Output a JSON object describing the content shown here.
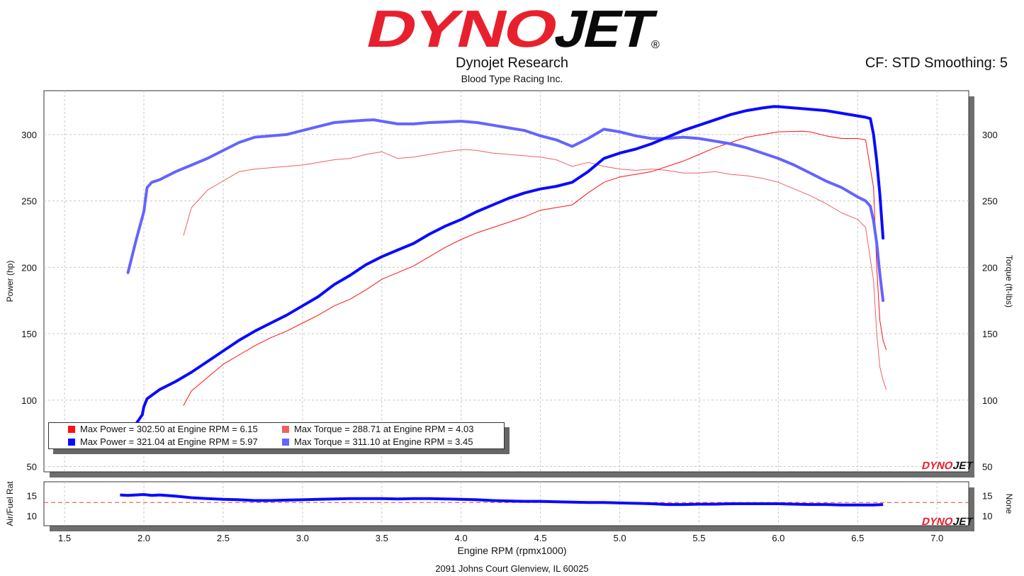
{
  "header": {
    "logo_text": "DYNOJET",
    "registered_mark": "®",
    "company": "Dynojet Research",
    "shop": "Blood Type Racing Inc.",
    "settings": "CF: STD Smoothing: 5"
  },
  "footer": {
    "address": "2091 Johns Court Glenview, IL 60025"
  },
  "watermark": "DYNOJET",
  "colors": {
    "run1_power": "#ff1010",
    "run1_torque": "#f06060",
    "run2_power": "#0a0aff",
    "run2_torque": "#6464ff",
    "afr_target": "#e04040",
    "logo_red": "#e8202e",
    "logo_black": "#0a0a0a"
  },
  "legend": [
    {
      "text": "Max Power = 302.50 at Engine RPM = 6.15",
      "color": "#ff1010"
    },
    {
      "text": "Max Torque = 288.71 at Engine RPM = 4.03",
      "color": "#f06060"
    },
    {
      "text": "Max Power = 321.04 at Engine RPM = 5.97",
      "color": "#0a0aff"
    },
    {
      "text": "Max Torque = 311.10 at Engine RPM = 3.45",
      "color": "#6464ff"
    }
  ],
  "chart_data": [
    {
      "type": "line",
      "xlabel": "Engine RPM (rpmx1000)",
      "ylabel": "Power (hp)",
      "y2label": "Torque (ft-lbs)",
      "xlim": [
        1.37,
        7.2
      ],
      "ylim": [
        46,
        333
      ],
      "xticks": [
        "1.5",
        "2.0",
        "2.5",
        "3.0",
        "3.5",
        "4.0",
        "4.5",
        "5.0",
        "5.5",
        "6.0",
        "6.5",
        "7.0"
      ],
      "yticks": [
        "50",
        "100",
        "150",
        "200",
        "250",
        "300"
      ],
      "y2ticks": [
        "50",
        "100",
        "150",
        "200",
        "250",
        "300"
      ],
      "grid": true,
      "legend_position": "bottom-left",
      "series": [
        {
          "axis": "power",
          "color": "#ff1010",
          "x": [
            2.25,
            2.3,
            2.4,
            2.5,
            2.6,
            2.7,
            2.8,
            2.9,
            3.0,
            3.1,
            3.2,
            3.3,
            3.4,
            3.5,
            3.6,
            3.7,
            3.8,
            3.9,
            4.0,
            4.1,
            4.2,
            4.3,
            4.4,
            4.5,
            4.6,
            4.7,
            4.8,
            4.9,
            5.0,
            5.1,
            5.2,
            5.3,
            5.4,
            5.5,
            5.6,
            5.7,
            5.8,
            5.9,
            6.0,
            6.1,
            6.15,
            6.2,
            6.3,
            6.4,
            6.5,
            6.55,
            6.6,
            6.62,
            6.64,
            6.66,
            6.68
          ],
          "y": [
            96,
            107,
            117,
            127,
            134,
            141,
            147,
            152,
            158,
            164,
            171,
            176,
            183,
            191,
            196,
            201,
            208,
            215,
            221,
            226,
            230,
            234,
            238,
            243,
            245,
            247,
            256,
            264,
            268,
            270,
            272,
            276,
            280,
            285,
            290,
            294,
            298,
            300,
            302,
            302.3,
            302.5,
            302,
            299,
            297,
            297,
            296,
            260,
            200,
            160,
            145,
            138
          ]
        },
        {
          "axis": "torque",
          "color": "#f06060",
          "x": [
            2.25,
            2.3,
            2.4,
            2.5,
            2.6,
            2.7,
            2.8,
            2.9,
            3.0,
            3.1,
            3.2,
            3.3,
            3.4,
            3.5,
            3.6,
            3.7,
            3.8,
            3.9,
            4.0,
            4.03,
            4.1,
            4.2,
            4.3,
            4.4,
            4.5,
            4.6,
            4.7,
            4.8,
            4.9,
            5.0,
            5.1,
            5.2,
            5.3,
            5.4,
            5.5,
            5.6,
            5.7,
            5.8,
            5.9,
            6.0,
            6.1,
            6.2,
            6.3,
            6.4,
            6.5,
            6.55,
            6.6,
            6.62,
            6.64,
            6.66,
            6.68
          ],
          "y": [
            224,
            245,
            258,
            265,
            272,
            274,
            275,
            276,
            277,
            279,
            281,
            282,
            285,
            287,
            282,
            283,
            285,
            287,
            288.5,
            288.71,
            288,
            286,
            285,
            284,
            283,
            281,
            276,
            279,
            276,
            274,
            273,
            274,
            273,
            271,
            271,
            272,
            270,
            269,
            267,
            264,
            259,
            254,
            248,
            241,
            236,
            230,
            190,
            150,
            125,
            115,
            108
          ]
        },
        {
          "axis": "power",
          "color": "#0a0aff",
          "x": [
            1.95,
            1.99,
            2.0,
            2.02,
            2.1,
            2.2,
            2.3,
            2.4,
            2.5,
            2.6,
            2.7,
            2.8,
            2.9,
            3.0,
            3.1,
            3.2,
            3.3,
            3.4,
            3.5,
            3.6,
            3.7,
            3.8,
            3.9,
            4.0,
            4.1,
            4.2,
            4.3,
            4.4,
            4.5,
            4.6,
            4.7,
            4.8,
            4.9,
            5.0,
            5.1,
            5.2,
            5.3,
            5.4,
            5.5,
            5.6,
            5.7,
            5.8,
            5.9,
            5.97,
            6.0,
            6.1,
            6.2,
            6.3,
            6.4,
            6.5,
            6.55,
            6.58,
            6.6,
            6.62,
            6.64,
            6.66
          ],
          "y": [
            82,
            89,
            95,
            101,
            108,
            114,
            121,
            129,
            137,
            145,
            152,
            158,
            164,
            171,
            178,
            187,
            194,
            202,
            208,
            213,
            218,
            225,
            231,
            236,
            242,
            247,
            252,
            256,
            259,
            261,
            264,
            272,
            282,
            286,
            289,
            293,
            298,
            303,
            307,
            311,
            315,
            318,
            320,
            321.04,
            321,
            320,
            319,
            318,
            316,
            314,
            313,
            312,
            300,
            280,
            255,
            222
          ]
        },
        {
          "axis": "torque",
          "color": "#6464ff",
          "x": [
            1.9,
            1.95,
            2.0,
            2.02,
            2.05,
            2.1,
            2.2,
            2.3,
            2.4,
            2.5,
            2.6,
            2.7,
            2.8,
            2.9,
            3.0,
            3.1,
            3.2,
            3.3,
            3.4,
            3.45,
            3.5,
            3.6,
            3.7,
            3.8,
            3.9,
            4.0,
            4.1,
            4.2,
            4.3,
            4.4,
            4.5,
            4.6,
            4.7,
            4.8,
            4.9,
            5.0,
            5.1,
            5.2,
            5.3,
            5.4,
            5.5,
            5.6,
            5.7,
            5.8,
            5.9,
            6.0,
            6.1,
            6.2,
            6.3,
            6.4,
            6.5,
            6.55,
            6.58,
            6.6,
            6.62,
            6.64,
            6.66
          ],
          "y": [
            196,
            220,
            242,
            260,
            264,
            266,
            272,
            277,
            282,
            288,
            294,
            298,
            299,
            300,
            303,
            306,
            309,
            310,
            310.8,
            311.1,
            310,
            308,
            308,
            309,
            309.5,
            310,
            309,
            307,
            305,
            303,
            299,
            296,
            291,
            297,
            304,
            302,
            299,
            297,
            297,
            298,
            297,
            295,
            293,
            290,
            286,
            282,
            277,
            271,
            265,
            260,
            253,
            250,
            246,
            235,
            218,
            195,
            175
          ]
        }
      ]
    },
    {
      "type": "line",
      "ylabel": "Air/Fuel Rat",
      "y2label": "None",
      "xlim": [
        1.37,
        7.2
      ],
      "ylim": [
        7.5,
        18.5
      ],
      "yticks": [
        "10",
        "15"
      ],
      "y2ticks": [
        "10",
        "15"
      ],
      "reference_line": {
        "y": 13.3,
        "style": "dashed",
        "color": "#e04040"
      },
      "series": [
        {
          "color": "#0a0aff",
          "x": [
            1.85,
            1.9,
            1.95,
            2.0,
            2.05,
            2.1,
            2.2,
            2.3,
            2.4,
            2.5,
            2.6,
            2.7,
            2.8,
            2.9,
            3.0,
            3.1,
            3.2,
            3.3,
            3.4,
            3.5,
            3.6,
            3.7,
            3.8,
            3.9,
            4.0,
            4.1,
            4.2,
            4.3,
            4.4,
            4.5,
            4.6,
            4.7,
            4.8,
            4.9,
            5.0,
            5.1,
            5.2,
            5.3,
            5.4,
            5.5,
            5.6,
            5.7,
            5.8,
            5.9,
            6.0,
            6.1,
            6.2,
            6.3,
            6.4,
            6.5,
            6.6,
            6.66
          ],
          "y": [
            15.2,
            15.1,
            15.2,
            15.3,
            15.1,
            15.2,
            14.9,
            14.5,
            14.3,
            14.1,
            14.0,
            13.8,
            13.8,
            13.9,
            14.0,
            14.1,
            14.2,
            14.3,
            14.3,
            14.3,
            14.2,
            14.3,
            14.3,
            14.2,
            14.1,
            14.0,
            13.8,
            13.7,
            13.6,
            13.6,
            13.5,
            13.4,
            13.3,
            13.3,
            13.2,
            13.1,
            13.0,
            12.8,
            12.8,
            12.9,
            12.9,
            13.0,
            13.0,
            13.0,
            13.0,
            12.9,
            12.8,
            12.8,
            12.7,
            12.7,
            12.7,
            12.8
          ]
        }
      ]
    }
  ]
}
